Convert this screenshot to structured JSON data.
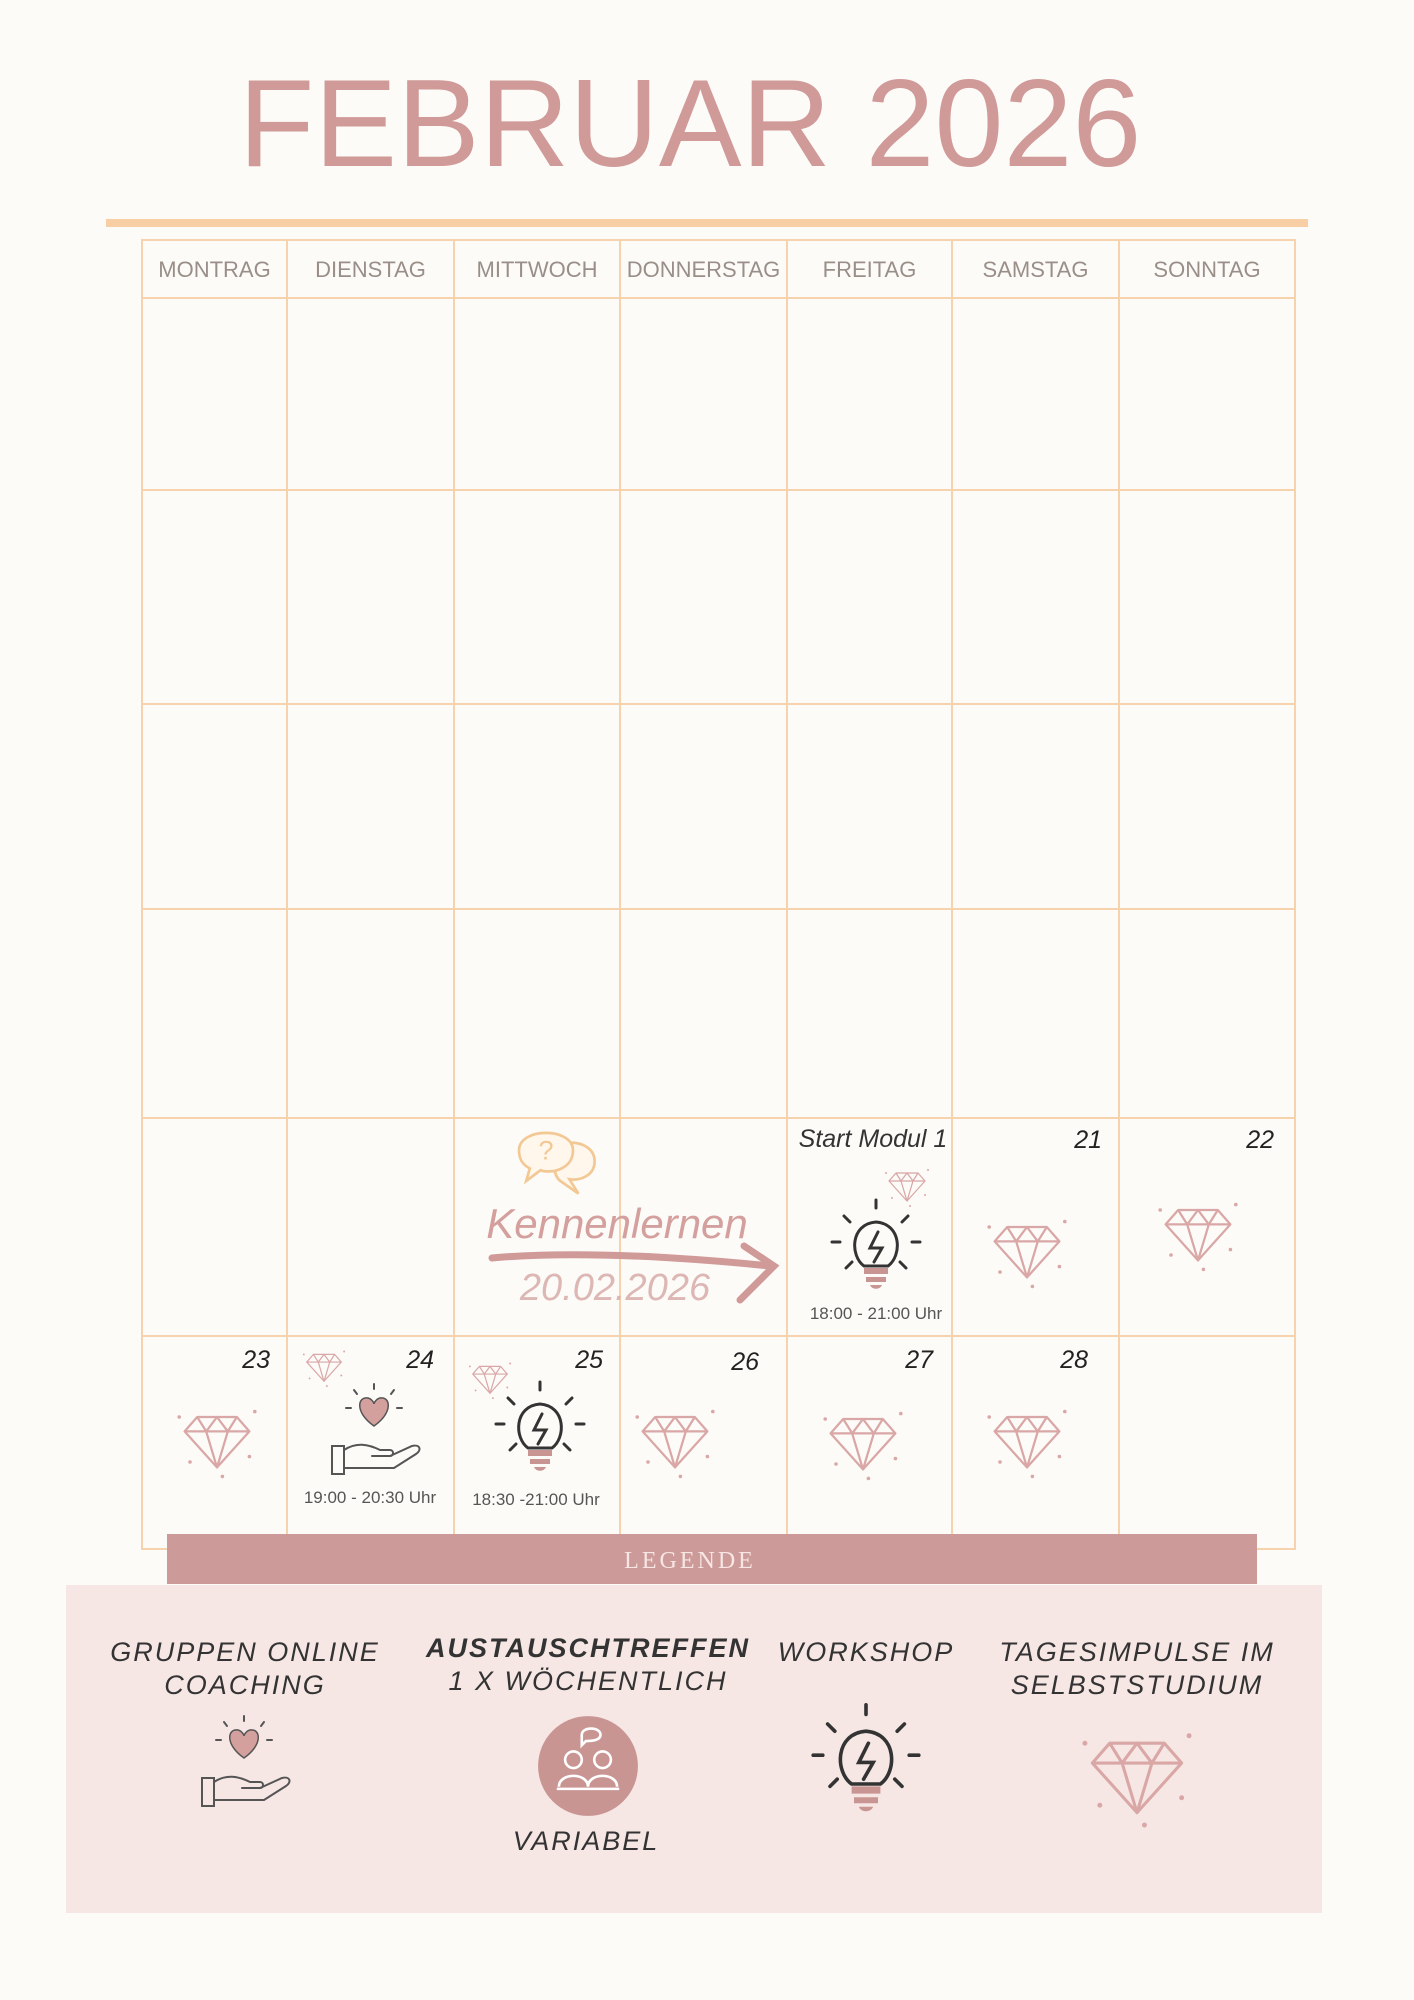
{
  "header": {
    "title": "FEBRUAR 2026"
  },
  "weekdays": [
    "MONTRAG",
    "DIENSTAG",
    "MITTWOCH",
    "DONNERSTAG",
    "FREITAG",
    "SAMSTAG",
    "SONNTAG"
  ],
  "weeks": [
    [
      null,
      null,
      null,
      null,
      null,
      null,
      null
    ],
    [
      null,
      null,
      null,
      null,
      null,
      null,
      null
    ],
    [
      null,
      null,
      null,
      null,
      null,
      null,
      null
    ],
    [
      null,
      null,
      null,
      null,
      null,
      null,
      null
    ],
    [
      null,
      null,
      null,
      null,
      {
        "label": "Start Modul 1",
        "time": "18:00 - 21:00 Uhr"
      },
      {
        "day": 21
      },
      {
        "day": 22
      }
    ],
    [
      {
        "day": 23
      },
      {
        "day": 24,
        "time": "19:00 - 20:30 Uhr"
      },
      {
        "day": 25,
        "time": "18:30 -21:00 Uhr"
      },
      {
        "day": 26
      },
      {
        "day": 27
      },
      {
        "day": 28
      },
      null
    ]
  ],
  "callout": {
    "title": "Kennenlernen",
    "date": "20.02.2026"
  },
  "legend": {
    "title": "LEGENDE",
    "items": [
      {
        "title": [
          "GRUPPEN ONLINE",
          "COACHING"
        ]
      },
      {
        "title": [
          "AUSTAUSCHTREFFEN"
        ],
        "subtitle": "1 X WÖCHENTLICH",
        "note": "VARIABEL"
      },
      {
        "title": [
          "WORKSHOP"
        ]
      },
      {
        "title": [
          "TAGESIMPULSE IM",
          "SELBSTSTUDIUM"
        ]
      }
    ]
  }
}
